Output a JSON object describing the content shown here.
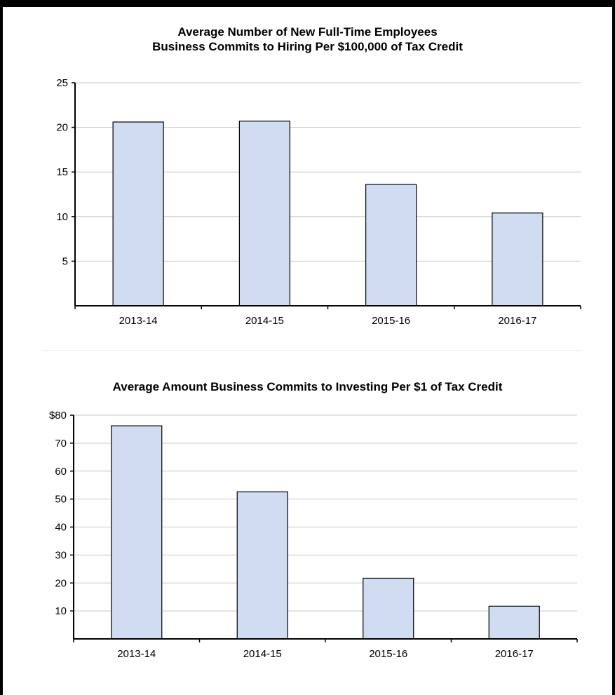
{
  "colors": {
    "bar_fill": "#cfdcf1",
    "bar_stroke": "#000000",
    "grid": "#c8c8c8",
    "axis": "#000000"
  },
  "chart_data": [
    {
      "type": "bar",
      "title_lines": [
        "Average Number of New Full-Time Employees",
        "Business Commits to Hiring Per $100,000 of Tax Credit"
      ],
      "categories": [
        "2013-14",
        "2014-15",
        "2015-16",
        "2016-17"
      ],
      "values": [
        20.6,
        20.7,
        13.6,
        10.4
      ],
      "ylim": [
        0,
        25
      ],
      "yticks": [
        5,
        10,
        15,
        20,
        25
      ],
      "ytick_labels": [
        "5",
        "10",
        "15",
        "20",
        "25"
      ],
      "xlabel": "",
      "ylabel": "",
      "grid": true
    },
    {
      "type": "bar",
      "title_lines": [
        "Average Amount Business Commits to Investing Per $1 of Tax Credit"
      ],
      "categories": [
        "2013-14",
        "2014-15",
        "2015-16",
        "2016-17"
      ],
      "values": [
        76.2,
        52.6,
        21.7,
        11.7
      ],
      "ylim": [
        0,
        80
      ],
      "yticks": [
        10,
        20,
        30,
        40,
        50,
        60,
        70,
        80
      ],
      "ytick_labels": [
        "10",
        "20",
        "30",
        "40",
        "50",
        "60",
        "70",
        "$80"
      ],
      "xlabel": "",
      "ylabel": "",
      "grid": true
    }
  ]
}
